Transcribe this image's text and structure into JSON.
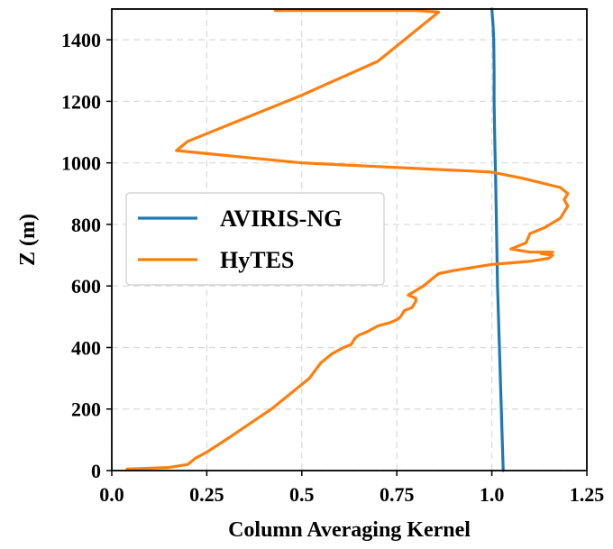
{
  "chart_data": {
    "type": "line",
    "title": "",
    "xlabel": "Column Averaging Kernel",
    "ylabel": "Z (m)",
    "xlim": [
      0.0,
      1.25
    ],
    "ylim": [
      0,
      1500
    ],
    "xticks": [
      0.0,
      0.25,
      0.5,
      0.75,
      1.0,
      1.25
    ],
    "xtick_labels": [
      "0.0",
      "0.25",
      "0.5",
      "0.75",
      "1.0",
      "1.25"
    ],
    "yticks": [
      0,
      200,
      400,
      600,
      800,
      1000,
      1200,
      1400
    ],
    "ytick_labels": [
      "0",
      "200",
      "400",
      "600",
      "800",
      "1000",
      "1200",
      "1400"
    ],
    "grid": true,
    "legend_position": "center-left",
    "series": [
      {
        "name": "AVIRIS-NG",
        "color": "#1f77b4",
        "x": [
          1.03,
          1.025,
          1.02,
          1.015,
          1.012,
          1.01,
          1.008,
          1.006,
          1.006,
          1.005,
          1.003,
          1.0
        ],
        "y": [
          0,
          200,
          400,
          600,
          800,
          950,
          1050,
          1200,
          1300,
          1400,
          1450,
          1500
        ]
      },
      {
        "name": "HyTES",
        "color": "#ff7f0e",
        "x": [
          0.04,
          0.15,
          0.2,
          0.22,
          0.25,
          0.3,
          0.36,
          0.42,
          0.48,
          0.52,
          0.55,
          0.58,
          0.61,
          0.63,
          0.64,
          0.65,
          0.67,
          0.7,
          0.73,
          0.75,
          0.76,
          0.77,
          0.79,
          0.8,
          0.8,
          0.78,
          0.82,
          0.84,
          0.86,
          0.9,
          0.95,
          1.0,
          1.05,
          1.1,
          1.15,
          1.16,
          1.13,
          1.16,
          1.1,
          1.05,
          1.09,
          1.1,
          1.14,
          1.18,
          1.19,
          1.2,
          1.19,
          1.2,
          1.18,
          1.08,
          1.0,
          0.5,
          0.25,
          0.17,
          0.2,
          0.3,
          0.5,
          0.7,
          0.86,
          0.8,
          0.43
        ],
        "y": [
          5,
          10,
          20,
          40,
          60,
          100,
          150,
          200,
          260,
          300,
          350,
          380,
          400,
          410,
          430,
          440,
          450,
          470,
          480,
          490,
          500,
          520,
          530,
          550,
          560,
          570,
          600,
          620,
          640,
          650,
          660,
          670,
          675,
          680,
          690,
          700,
          705,
          710,
          710,
          720,
          740,
          770,
          790,
          820,
          840,
          860,
          880,
          900,
          920,
          950,
          970,
          1000,
          1030,
          1040,
          1070,
          1120,
          1220,
          1330,
          1490,
          1495,
          1495
        ]
      }
    ]
  }
}
